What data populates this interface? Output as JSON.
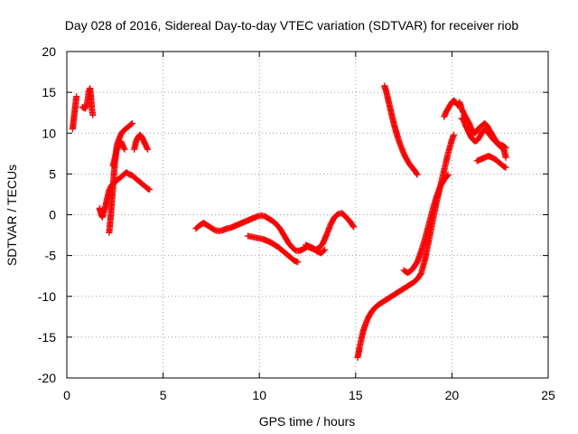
{
  "chart_data": {
    "type": "scatter",
    "title": "Day 028 of 2016, Sidereal Day-to-day VTEC variation (SDTVAR) for receiver riob",
    "xlabel": "GPS time / hours",
    "ylabel": "SDTVAR / TECUs",
    "xlim": [
      0,
      25
    ],
    "ylim": [
      -20,
      20
    ],
    "xticks": [
      0,
      5,
      10,
      15,
      20,
      25
    ],
    "yticks": [
      -20,
      -15,
      -10,
      -5,
      0,
      5,
      10,
      15,
      20
    ],
    "xtick_labels": [
      "0",
      "5",
      "10",
      "15",
      "20",
      "25"
    ],
    "ytick_labels": [
      "-20",
      "-15",
      "-10",
      "-5",
      "0",
      "5",
      "10",
      "15",
      "20"
    ],
    "grid": true,
    "marker": "+",
    "color": "#ff0000",
    "series": [
      {
        "x": [
          0.3,
          0.35,
          0.4,
          0.45,
          0.5
        ],
        "y": [
          10.5,
          11.5,
          12.5,
          13.5,
          14.5
        ]
      },
      {
        "x": [
          0.8,
          0.95,
          1.05,
          1.1,
          1.15,
          1.2,
          1.25,
          1.3,
          1.35
        ],
        "y": [
          13.2,
          13.0,
          13.6,
          14.4,
          15.2,
          15.5,
          14.5,
          13.0,
          12.2
        ]
      },
      {
        "x": [
          1.7,
          1.75,
          1.8,
          1.85,
          1.9,
          2.0,
          2.1,
          2.2,
          2.3,
          2.4,
          2.5,
          2.6,
          2.7,
          2.8,
          2.9,
          3.0,
          3.1,
          3.2,
          3.3,
          3.4,
          3.5,
          3.6,
          3.7,
          3.8,
          3.9,
          4.0,
          4.1,
          4.2,
          4.3
        ],
        "y": [
          0.8,
          0.3,
          -0.1,
          -0.3,
          0.2,
          1.0,
          2.0,
          3.0,
          3.5,
          3.8,
          4.0,
          4.2,
          4.4,
          4.6,
          4.8,
          5.0,
          5.2,
          5.0,
          4.9,
          4.8,
          4.6,
          4.4,
          4.2,
          4.0,
          3.8,
          3.6,
          3.4,
          3.2,
          3.1
        ]
      },
      {
        "x": [
          2.2,
          2.25,
          2.3,
          2.35,
          2.4,
          2.45,
          2.5,
          2.55,
          2.6,
          2.7,
          2.8,
          2.9,
          3.0,
          3.1,
          3.2,
          3.3,
          3.4
        ],
        "y": [
          -2.2,
          -1.0,
          0.5,
          2.0,
          3.5,
          5.0,
          6.5,
          7.5,
          8.5,
          9.2,
          9.8,
          10.2,
          10.4,
          10.6,
          10.8,
          11.0,
          11.2
        ]
      },
      {
        "x": [
          2.4,
          2.5,
          2.6,
          2.7,
          2.8,
          2.9,
          3.0
        ],
        "y": [
          6.0,
          7.0,
          8.0,
          8.5,
          9.0,
          8.5,
          8.0
        ]
      },
      {
        "x": [
          3.5,
          3.6,
          3.7,
          3.8,
          3.9,
          4.0,
          4.1,
          4.2
        ],
        "y": [
          8.0,
          9.0,
          9.5,
          9.8,
          9.5,
          9.0,
          8.5,
          8.0
        ]
      },
      {
        "x": [
          6.7,
          6.9,
          7.1,
          7.3,
          7.5,
          7.7,
          7.9,
          8.1,
          8.3,
          8.5,
          8.7,
          8.9,
          9.1,
          9.3,
          9.5,
          9.7,
          9.9,
          10.1,
          10.3,
          10.5,
          10.7,
          10.9,
          11.1,
          11.3,
          11.5,
          11.7,
          11.9,
          12.1,
          12.3,
          12.5,
          12.7,
          12.9,
          13.1,
          13.3,
          13.5,
          13.7,
          13.9,
          14.1,
          14.3,
          14.5,
          14.7,
          14.9
        ],
        "y": [
          -1.7,
          -1.3,
          -1.0,
          -1.3,
          -1.6,
          -1.9,
          -2.0,
          -1.9,
          -1.7,
          -1.6,
          -1.4,
          -1.2,
          -1.0,
          -0.8,
          -0.6,
          -0.4,
          -0.2,
          -0.1,
          -0.2,
          -0.5,
          -0.8,
          -1.2,
          -1.8,
          -2.6,
          -3.4,
          -4.0,
          -4.4,
          -4.4,
          -4.2,
          -3.9,
          -4.1,
          -4.3,
          -4.1,
          -3.5,
          -2.4,
          -1.2,
          -0.3,
          0.1,
          0.2,
          -0.3,
          -0.8,
          -1.5
        ]
      },
      {
        "x": [
          9.4,
          9.6,
          9.8,
          10.0,
          10.2,
          10.4,
          10.6,
          10.8,
          11.0,
          11.2,
          11.4,
          11.6,
          11.8,
          12.0
        ],
        "y": [
          -2.6,
          -2.7,
          -2.8,
          -2.9,
          -3.0,
          -3.2,
          -3.4,
          -3.7,
          -4.0,
          -4.4,
          -4.8,
          -5.2,
          -5.6,
          -5.8
        ]
      },
      {
        "x": [
          12.4,
          12.6,
          12.8,
          13.0,
          13.2,
          13.4
        ],
        "y": [
          -3.7,
          -3.9,
          -4.1,
          -4.5,
          -4.7,
          -4.3
        ]
      },
      {
        "x": [
          16.5,
          16.6,
          16.7,
          16.8,
          16.9,
          17.0,
          17.1,
          17.2,
          17.3,
          17.4,
          17.5,
          17.6,
          17.7,
          17.8,
          17.9,
          18.0,
          18.1,
          18.2
        ],
        "y": [
          15.8,
          15.0,
          14.0,
          13.0,
          12.0,
          11.0,
          10.2,
          9.4,
          8.7,
          8.1,
          7.5,
          7.0,
          6.6,
          6.2,
          5.9,
          5.6,
          5.3,
          4.9
        ]
      },
      {
        "x": [
          15.1,
          15.15,
          15.2,
          15.3,
          15.4,
          15.5,
          15.6,
          15.7,
          15.8,
          15.9,
          16.0,
          16.2,
          16.4,
          16.6,
          16.8,
          17.0,
          17.2,
          17.4,
          17.6,
          17.8,
          18.0,
          18.2,
          18.4,
          18.6,
          18.8,
          19.0,
          19.2,
          19.4,
          19.6,
          19.8,
          20.0,
          20.1
        ],
        "y": [
          -17.5,
          -17.0,
          -16.3,
          -15.2,
          -14.2,
          -13.5,
          -12.9,
          -12.4,
          -12.0,
          -11.7,
          -11.4,
          -11.0,
          -10.7,
          -10.4,
          -10.1,
          -9.8,
          -9.5,
          -9.2,
          -8.9,
          -8.6,
          -8.3,
          -7.9,
          -7.2,
          -5.5,
          -3.2,
          -0.8,
          1.5,
          3.5,
          5.5,
          7.5,
          9.2,
          9.8
        ]
      },
      {
        "x": [
          17.5,
          17.6,
          17.7,
          17.8,
          17.9,
          18.0,
          18.2,
          18.4,
          18.6,
          18.8,
          19.0,
          19.2,
          19.4,
          19.6,
          19.8
        ],
        "y": [
          -6.8,
          -7.0,
          -7.1,
          -7.0,
          -6.8,
          -6.5,
          -5.8,
          -4.5,
          -3.0,
          -1.2,
          0.6,
          2.2,
          3.5,
          4.3,
          4.9
        ]
      },
      {
        "x": [
          19.6,
          19.7,
          19.8,
          19.9,
          20.0,
          20.1,
          20.2,
          20.3,
          20.4,
          20.5,
          20.6,
          20.7,
          20.8,
          20.9,
          21.0,
          21.1,
          21.2,
          21.3,
          21.4,
          21.5,
          21.6,
          21.7,
          21.8,
          21.9,
          22.0,
          22.1,
          22.2,
          22.3,
          22.4,
          22.5,
          22.6,
          22.7,
          22.8
        ],
        "y": [
          12.0,
          12.6,
          13.0,
          13.4,
          13.8,
          14.0,
          13.8,
          13.4,
          13.8,
          13.0,
          12.5,
          12.0,
          11.6,
          11.2,
          10.6,
          10.2,
          10.0,
          10.3,
          10.6,
          10.8,
          11.0,
          11.2,
          11.0,
          10.6,
          10.2,
          9.8,
          9.4,
          9.0,
          8.6,
          8.4,
          8.2,
          8.0,
          7.0
        ]
      },
      {
        "x": [
          20.5,
          20.6,
          20.7,
          20.8,
          20.9,
          21.0,
          21.1,
          21.2,
          21.3,
          21.4,
          21.5,
          21.6,
          21.7,
          21.8,
          21.9,
          22.0,
          22.1,
          22.2,
          22.3,
          22.4,
          22.5,
          22.6,
          22.7,
          22.8
        ],
        "y": [
          11.8,
          11.6,
          11.0,
          10.5,
          10.0,
          9.5,
          9.2,
          9.0,
          9.1,
          9.4,
          9.8,
          10.2,
          10.4,
          10.3,
          10.0,
          9.7,
          9.4,
          9.1,
          8.9,
          8.7,
          8.6,
          8.5,
          8.4,
          8.2
        ]
      },
      {
        "x": [
          21.3,
          21.5,
          21.7,
          21.9,
          22.1,
          22.3,
          22.5,
          22.7,
          22.8
        ],
        "y": [
          6.6,
          6.8,
          7.0,
          7.2,
          7.0,
          6.7,
          6.3,
          5.9,
          5.8
        ]
      }
    ]
  }
}
